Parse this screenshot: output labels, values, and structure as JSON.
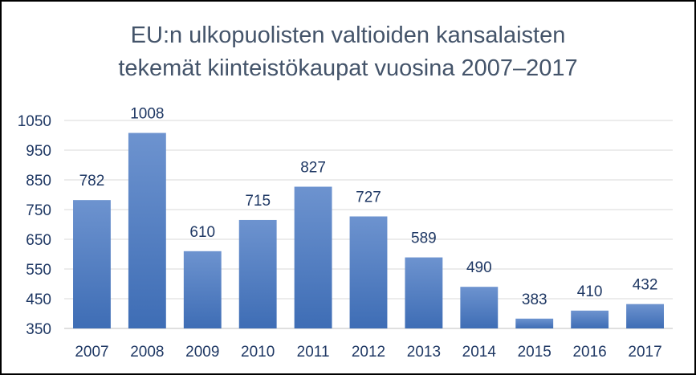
{
  "chart_data": {
    "type": "bar",
    "title_line1": "EU:n ulkopuolisten valtioiden kansalaisten",
    "title_line2": "tekemät kiinteistökaupat vuosina 2007–2017",
    "categories": [
      "2007",
      "2008",
      "2009",
      "2010",
      "2011",
      "2012",
      "2013",
      "2014",
      "2015",
      "2016",
      "2017"
    ],
    "values": [
      782,
      1008,
      610,
      715,
      827,
      727,
      589,
      490,
      383,
      410,
      432
    ],
    "xlabel": "",
    "ylabel": "",
    "ylim": [
      350,
      1050
    ],
    "yticks": [
      350,
      450,
      550,
      650,
      750,
      850,
      950,
      1050
    ],
    "grid": true,
    "legend": "none",
    "bar_color_top": "#6d93cf",
    "bar_color_bottom": "#3e6db5",
    "text_color": "#1f3864",
    "grid_color": "#d9d9d9"
  }
}
